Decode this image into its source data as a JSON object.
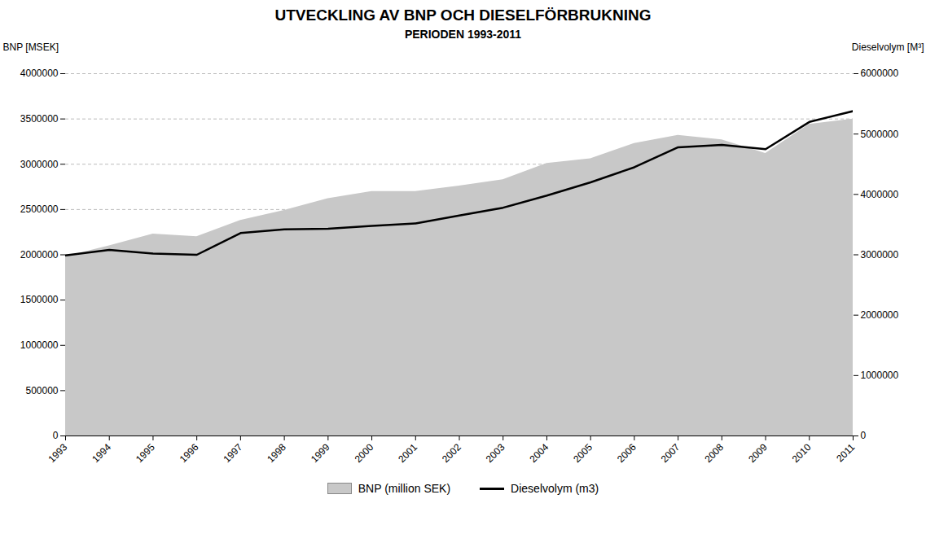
{
  "chart_data": {
    "type": "line",
    "title": "UTVECKLING AV BNP OCH DIESELFÖRBRUKNING",
    "subtitle": "PERIODEN 1993-2011",
    "ylabel": "BNP [MSEK]",
    "y2label": "Dieselvolym [M³]",
    "x": [
      1993,
      1994,
      1995,
      1996,
      1997,
      1998,
      1999,
      2000,
      2001,
      2002,
      2003,
      2004,
      2005,
      2006,
      2007,
      2008,
      2009,
      2010,
      2011
    ],
    "xlim": [
      1993,
      2011
    ],
    "xticks": [
      1993,
      1994,
      1995,
      1996,
      1997,
      1998,
      1999,
      2000,
      2001,
      2002,
      2003,
      2004,
      2005,
      2006,
      2007,
      2008,
      2009,
      2010,
      2011
    ],
    "ylim": [
      0,
      4000000
    ],
    "yticks": [
      0,
      500000,
      1000000,
      1500000,
      2000000,
      2500000,
      3000000,
      3500000,
      4000000
    ],
    "y2lim": [
      0,
      6000000
    ],
    "y2ticks": [
      0,
      1000000,
      2000000,
      3000000,
      4000000,
      5000000,
      6000000
    ],
    "grid": "y",
    "legend": "bottom",
    "series": [
      {
        "name": "BNP (million SEK)",
        "type": "area",
        "color": "#c8c8c8",
        "values": [
          1980000,
          2100000,
          2230000,
          2200000,
          2380000,
          2490000,
          2620000,
          2700000,
          2700000,
          2760000,
          2830000,
          3010000,
          3060000,
          3230000,
          3320000,
          3270000,
          3120000,
          3440000,
          3500000
        ]
      },
      {
        "name": "Dieselvolym (m3)",
        "type": "line",
        "color": "#000000",
        "axis": "y2",
        "values": [
          2990000,
          3080000,
          3020000,
          3000000,
          3360000,
          3420000,
          3430000,
          3480000,
          3520000,
          3650000,
          3780000,
          3980000,
          4200000,
          4450000,
          4780000,
          4820000,
          4750000,
          5200000,
          5380000
        ]
      }
    ]
  }
}
